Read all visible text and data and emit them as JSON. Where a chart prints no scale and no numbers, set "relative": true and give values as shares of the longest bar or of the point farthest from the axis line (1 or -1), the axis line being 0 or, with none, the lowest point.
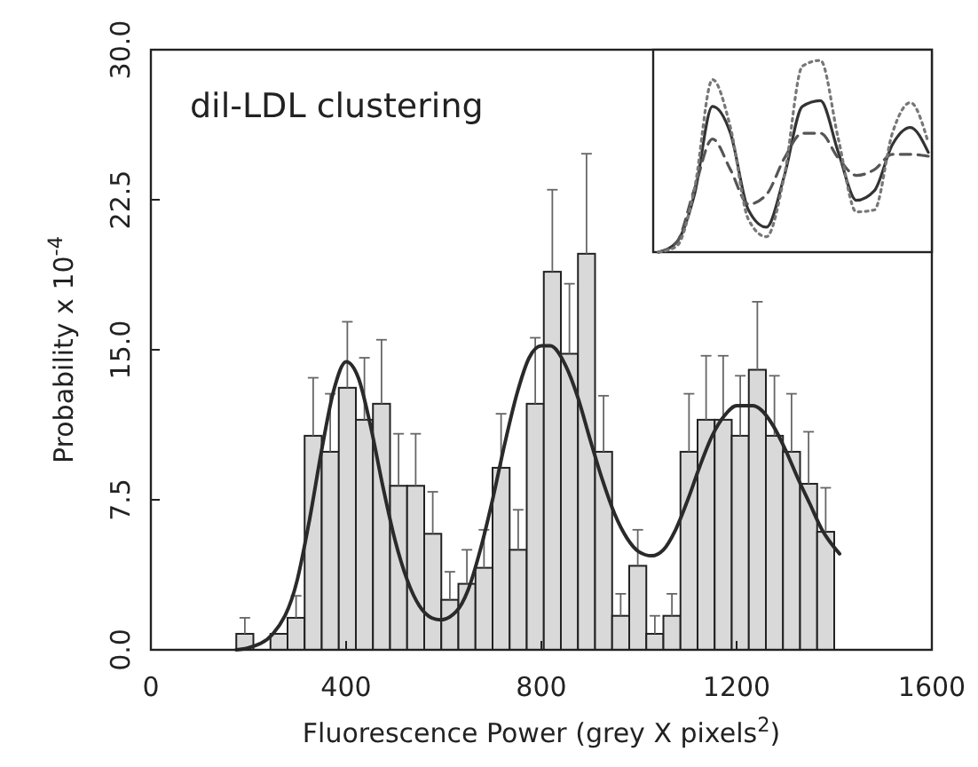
{
  "chart_data": [
    {
      "type": "histogram",
      "title": "dil-LDL clustering",
      "xlabel": "Fluorescence Power (grey X pixels$^{2}$)",
      "ylabel": "Probability x 10$^{-4}$",
      "bins": [
        175,
        210,
        245,
        280,
        315,
        350,
        385,
        420,
        455,
        490,
        525,
        560,
        595,
        630,
        665,
        700,
        735,
        770,
        805,
        840,
        875,
        910,
        945,
        980,
        1015,
        1050,
        1085,
        1120,
        1155,
        1190,
        1225,
        1260,
        1295,
        1330,
        1365,
        1400
      ],
      "xlim": [
        0,
        1600
      ],
      "xticks": [
        0,
        400,
        800,
        1200,
        1600
      ],
      "ylim": [
        0,
        30
      ],
      "yticks": [
        {
          "value": 0,
          "label": "0.0"
        },
        {
          "value": 7.5,
          "label": "7.5"
        },
        {
          "value": 15,
          "label": "15.0"
        },
        {
          "value": 22.5,
          "label": "22.5"
        },
        {
          "value": 30,
          "label": "30.0"
        }
      ],
      "grid": false,
      "series": [
        {
          "color": "#d9d9d9",
          "values": [
            0.8,
            0,
            0.8,
            1.6,
            10.7,
            9.9,
            13.1,
            11.5,
            12.3,
            8.2,
            8.2,
            5.8,
            2.5,
            3.3,
            4.1,
            9.1,
            5.0,
            12.3,
            18.9,
            14.8,
            19.8,
            9.9,
            1.7,
            4.2,
            0.8,
            1.7,
            9.9,
            11.5,
            11.5,
            10.7,
            14.0,
            10.7,
            9.9,
            8.3,
            5.9
          ],
          "errors": [
            [
              0.8,
              1.6
            ],
            null,
            null,
            [
              1.6,
              2.7
            ],
            [
              10.7,
              13.6
            ],
            [
              9.9,
              12.8
            ],
            [
              13.1,
              16.4
            ],
            [
              11.5,
              14.6
            ],
            [
              12.3,
              15.5
            ],
            [
              8.2,
              10.8
            ],
            [
              8.2,
              10.8
            ],
            [
              5.8,
              7.9
            ],
            [
              2.5,
              3.9
            ],
            [
              3.3,
              5.0
            ],
            [
              4.1,
              6.0
            ],
            [
              9.1,
              11.8
            ],
            [
              5.0,
              7.0
            ],
            [
              12.3,
              15.6
            ],
            [
              18.9,
              23.0
            ],
            [
              14.8,
              18.3
            ],
            [
              19.8,
              24.8
            ],
            [
              9.9,
              12.7
            ],
            [
              1.7,
              2.8
            ],
            [
              4.2,
              6.0
            ],
            [
              0.8,
              1.7
            ],
            [
              1.7,
              2.8
            ],
            [
              9.9,
              12.8
            ],
            [
              11.5,
              14.7
            ],
            [
              11.5,
              14.7
            ],
            [
              10.7,
              13.7
            ],
            [
              14.0,
              17.4
            ],
            [
              10.7,
              13.7
            ],
            [
              9.9,
              12.8
            ],
            [
              8.3,
              10.9
            ],
            [
              5.9,
              8.1
            ]
          ]
        },
        {
          "type": "line",
          "color": "#2a2a2a",
          "line_style": "solid",
          "x": [
            175,
            200,
            250,
            300,
            325,
            350,
            375,
            400,
            425,
            450,
            475,
            500,
            525,
            550,
            575,
            593,
            625,
            650,
            675,
            700,
            725,
            750,
            775,
            800,
            818,
            850,
            875,
            900,
            925,
            950,
            975,
            1000,
            1026,
            1050,
            1075,
            1100,
            1125,
            1150,
            1175,
            1200,
            1233,
            1250,
            1275,
            1300,
            1325,
            1350,
            1375,
            1411
          ],
          "values": [
            0,
            0.1,
            0.8,
            3.5,
            6.5,
            10,
            13,
            14.4,
            13.6,
            11.2,
            8.2,
            5.5,
            3.5,
            2.2,
            1.6,
            1.5,
            1.9,
            3.0,
            5.0,
            7.5,
            10.3,
            12.8,
            14.6,
            15.2,
            15.2,
            14.2,
            12.6,
            10.5,
            8.5,
            6.8,
            5.6,
            4.9,
            4.7,
            5.0,
            6.0,
            7.5,
            9.2,
            10.7,
            11.7,
            12.2,
            12.2,
            12.0,
            11.2,
            10.0,
            8.6,
            7.3,
            6.0,
            4.8
          ]
        }
      ]
    },
    {
      "type": "line",
      "relative": true,
      "categories": [
        null,
        null,
        null,
        null,
        null,
        null,
        null,
        null,
        null,
        null,
        null,
        null,
        null,
        null,
        null,
        null
      ],
      "series": [
        {
          "color": "#333333",
          "line_style": "solid",
          "values": [
            0,
            0.05,
            0.3,
            0.76,
            0.62,
            0.22,
            0.13,
            0.4,
            0.76,
            0.79,
            0.52,
            0.27,
            0.32,
            0.56,
            0.65,
            0.52
          ]
        },
        {
          "color": "#555555",
          "line_style": "dashed",
          "values": [
            0,
            0.05,
            0.33,
            0.59,
            0.43,
            0.25,
            0.3,
            0.49,
            0.62,
            0.62,
            0.49,
            0.4,
            0.43,
            0.51,
            0.51,
            0.5
          ]
        },
        {
          "color": "#777777",
          "line_style": "dotted",
          "values": [
            0,
            0.03,
            0.33,
            0.9,
            0.65,
            0.17,
            0.08,
            0.4,
            0.97,
            1.0,
            0.59,
            0.21,
            0.22,
            0.62,
            0.78,
            0.57
          ]
        }
      ]
    }
  ]
}
